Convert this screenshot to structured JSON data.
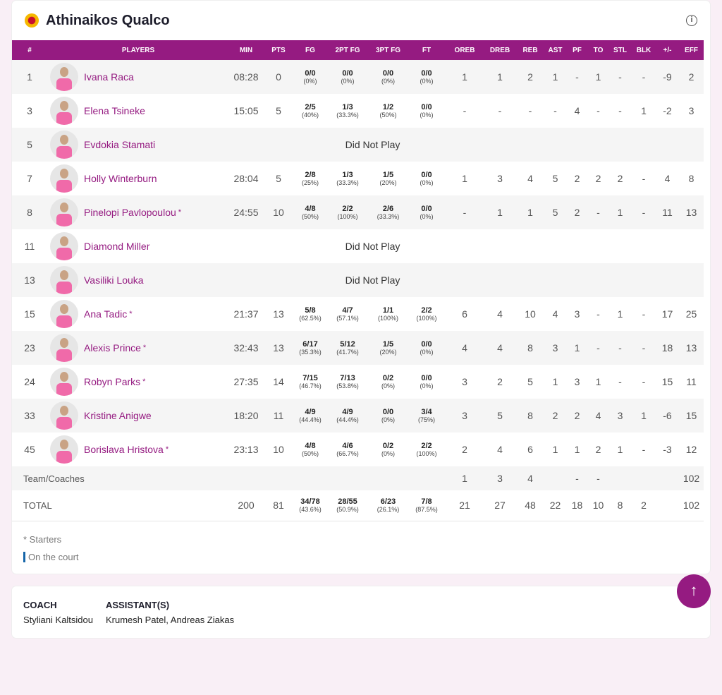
{
  "team": {
    "name": "Athinaikos Qualco"
  },
  "columns": [
    "#",
    "PLAYERS",
    "MIN",
    "PTS",
    "FG",
    "2PT FG",
    "3PT FG",
    "FT",
    "OREB",
    "DREB",
    "REB",
    "AST",
    "PF",
    "TO",
    "STL",
    "BLK",
    "+/-",
    "EFF"
  ],
  "players": [
    {
      "num": "1",
      "name": "Ivana Raca",
      "starter": false,
      "min": "08:28",
      "pts": "0",
      "fg": [
        "0/0",
        "(0%)"
      ],
      "p2": [
        "0/0",
        "(0%)"
      ],
      "p3": [
        "0/0",
        "(0%)"
      ],
      "ft": [
        "0/0",
        "(0%)"
      ],
      "rest": [
        "1",
        "1",
        "2",
        "1",
        "-",
        "1",
        "-",
        "-",
        "-9",
        "2"
      ]
    },
    {
      "num": "3",
      "name": "Elena Tsineke",
      "starter": false,
      "min": "15:05",
      "pts": "5",
      "fg": [
        "2/5",
        "(40%)"
      ],
      "p2": [
        "1/3",
        "(33.3%)"
      ],
      "p3": [
        "1/2",
        "(50%)"
      ],
      "ft": [
        "0/0",
        "(0%)"
      ],
      "rest": [
        "-",
        "-",
        "-",
        "-",
        "4",
        "-",
        "-",
        "1",
        "-2",
        "3"
      ]
    },
    {
      "num": "5",
      "name": "Evdokia Stamati",
      "starter": false,
      "dnp": "Did Not Play"
    },
    {
      "num": "7",
      "name": "Holly Winterburn",
      "starter": false,
      "min": "28:04",
      "pts": "5",
      "fg": [
        "2/8",
        "(25%)"
      ],
      "p2": [
        "1/3",
        "(33.3%)"
      ],
      "p3": [
        "1/5",
        "(20%)"
      ],
      "ft": [
        "0/0",
        "(0%)"
      ],
      "rest": [
        "1",
        "3",
        "4",
        "5",
        "2",
        "2",
        "2",
        "-",
        "4",
        "8"
      ]
    },
    {
      "num": "8",
      "name": "Pinelopi Pavlopoulou",
      "starter": true,
      "min": "24:55",
      "pts": "10",
      "fg": [
        "4/8",
        "(50%)"
      ],
      "p2": [
        "2/2",
        "(100%)"
      ],
      "p3": [
        "2/6",
        "(33.3%)"
      ],
      "ft": [
        "0/0",
        "(0%)"
      ],
      "rest": [
        "-",
        "1",
        "1",
        "5",
        "2",
        "-",
        "1",
        "-",
        "11",
        "13"
      ]
    },
    {
      "num": "11",
      "name": "Diamond Miller",
      "starter": false,
      "dnp": "Did Not Play"
    },
    {
      "num": "13",
      "name": "Vasiliki Louka",
      "starter": false,
      "dnp": "Did Not Play"
    },
    {
      "num": "15",
      "name": "Ana Tadic",
      "starter": true,
      "min": "21:37",
      "pts": "13",
      "fg": [
        "5/8",
        "(62.5%)"
      ],
      "p2": [
        "4/7",
        "(57.1%)"
      ],
      "p3": [
        "1/1",
        "(100%)"
      ],
      "ft": [
        "2/2",
        "(100%)"
      ],
      "rest": [
        "6",
        "4",
        "10",
        "4",
        "3",
        "-",
        "1",
        "-",
        "17",
        "25"
      ]
    },
    {
      "num": "23",
      "name": "Alexis Prince",
      "starter": true,
      "min": "32:43",
      "pts": "13",
      "fg": [
        "6/17",
        "(35.3%)"
      ],
      "p2": [
        "5/12",
        "(41.7%)"
      ],
      "p3": [
        "1/5",
        "(20%)"
      ],
      "ft": [
        "0/0",
        "(0%)"
      ],
      "rest": [
        "4",
        "4",
        "8",
        "3",
        "1",
        "-",
        "-",
        "-",
        "18",
        "13"
      ]
    },
    {
      "num": "24",
      "name": "Robyn Parks",
      "starter": true,
      "min": "27:35",
      "pts": "14",
      "fg": [
        "7/15",
        "(46.7%)"
      ],
      "p2": [
        "7/13",
        "(53.8%)"
      ],
      "p3": [
        "0/2",
        "(0%)"
      ],
      "ft": [
        "0/0",
        "(0%)"
      ],
      "rest": [
        "3",
        "2",
        "5",
        "1",
        "3",
        "1",
        "-",
        "-",
        "15",
        "11"
      ]
    },
    {
      "num": "33",
      "name": "Kristine Anigwe",
      "starter": false,
      "min": "18:20",
      "pts": "11",
      "fg": [
        "4/9",
        "(44.4%)"
      ],
      "p2": [
        "4/9",
        "(44.4%)"
      ],
      "p3": [
        "0/0",
        "(0%)"
      ],
      "ft": [
        "3/4",
        "(75%)"
      ],
      "rest": [
        "3",
        "5",
        "8",
        "2",
        "2",
        "4",
        "3",
        "1",
        "-6",
        "15"
      ]
    },
    {
      "num": "45",
      "name": "Borislava Hristova",
      "starter": true,
      "min": "23:13",
      "pts": "10",
      "fg": [
        "4/8",
        "(50%)"
      ],
      "p2": [
        "4/6",
        "(66.7%)"
      ],
      "p3": [
        "0/2",
        "(0%)"
      ],
      "ft": [
        "2/2",
        "(100%)"
      ],
      "rest": [
        "2",
        "4",
        "6",
        "1",
        "1",
        "2",
        "1",
        "-",
        "-3",
        "12"
      ]
    }
  ],
  "team_row": {
    "label": "Team/Coaches",
    "rest": [
      "1",
      "3",
      "4",
      "",
      "-",
      "-",
      "",
      "",
      "",
      "102"
    ]
  },
  "total_row": {
    "label": "TOTAL",
    "min": "200",
    "pts": "81",
    "fg": [
      "34/78",
      "(43.6%)"
    ],
    "p2": [
      "28/55",
      "(50.9%)"
    ],
    "p3": [
      "6/23",
      "(26.1%)"
    ],
    "ft": [
      "7/8",
      "(87.5%)"
    ],
    "rest": [
      "21",
      "27",
      "48",
      "22",
      "18",
      "10",
      "8",
      "2",
      "",
      "102"
    ]
  },
  "legend": {
    "starters": "* Starters",
    "on_court": "On the court"
  },
  "coach": {
    "coach_label": "COACH",
    "coach_name": "Styliani Kaltsidou",
    "assistants_label": "ASSISTANT(S)",
    "assistants": "Krumesh Patel, Andreas Ziakas"
  },
  "colors": {
    "accent": "#951b81",
    "on_court": "#1565a8"
  }
}
